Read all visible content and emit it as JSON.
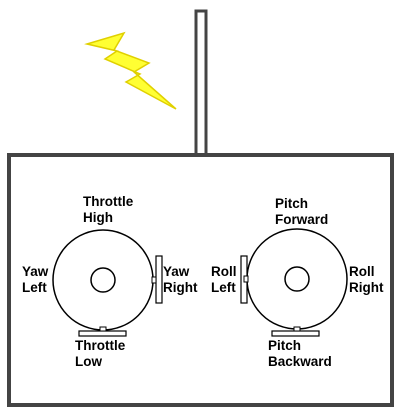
{
  "colors": {
    "outline": "#444444",
    "bolt_fill": "#ffff33",
    "bolt_stroke": "#e0d000",
    "background": "#ffffff"
  },
  "icons": {
    "bolt": "lightning-bolt-icon"
  },
  "left_stick": {
    "top_label": [
      "Throttle",
      "High"
    ],
    "bottom_label": [
      "Throttle",
      "Low"
    ],
    "left_label": [
      "Yaw",
      "Left"
    ],
    "right_label": [
      "Yaw",
      "Right"
    ]
  },
  "right_stick": {
    "top_label": [
      "Pitch",
      "Forward"
    ],
    "bottom_label": [
      "Pitch",
      "Backward"
    ],
    "left_label": [
      "Roll",
      "Left"
    ],
    "right_label": [
      "Roll",
      "Right"
    ]
  }
}
